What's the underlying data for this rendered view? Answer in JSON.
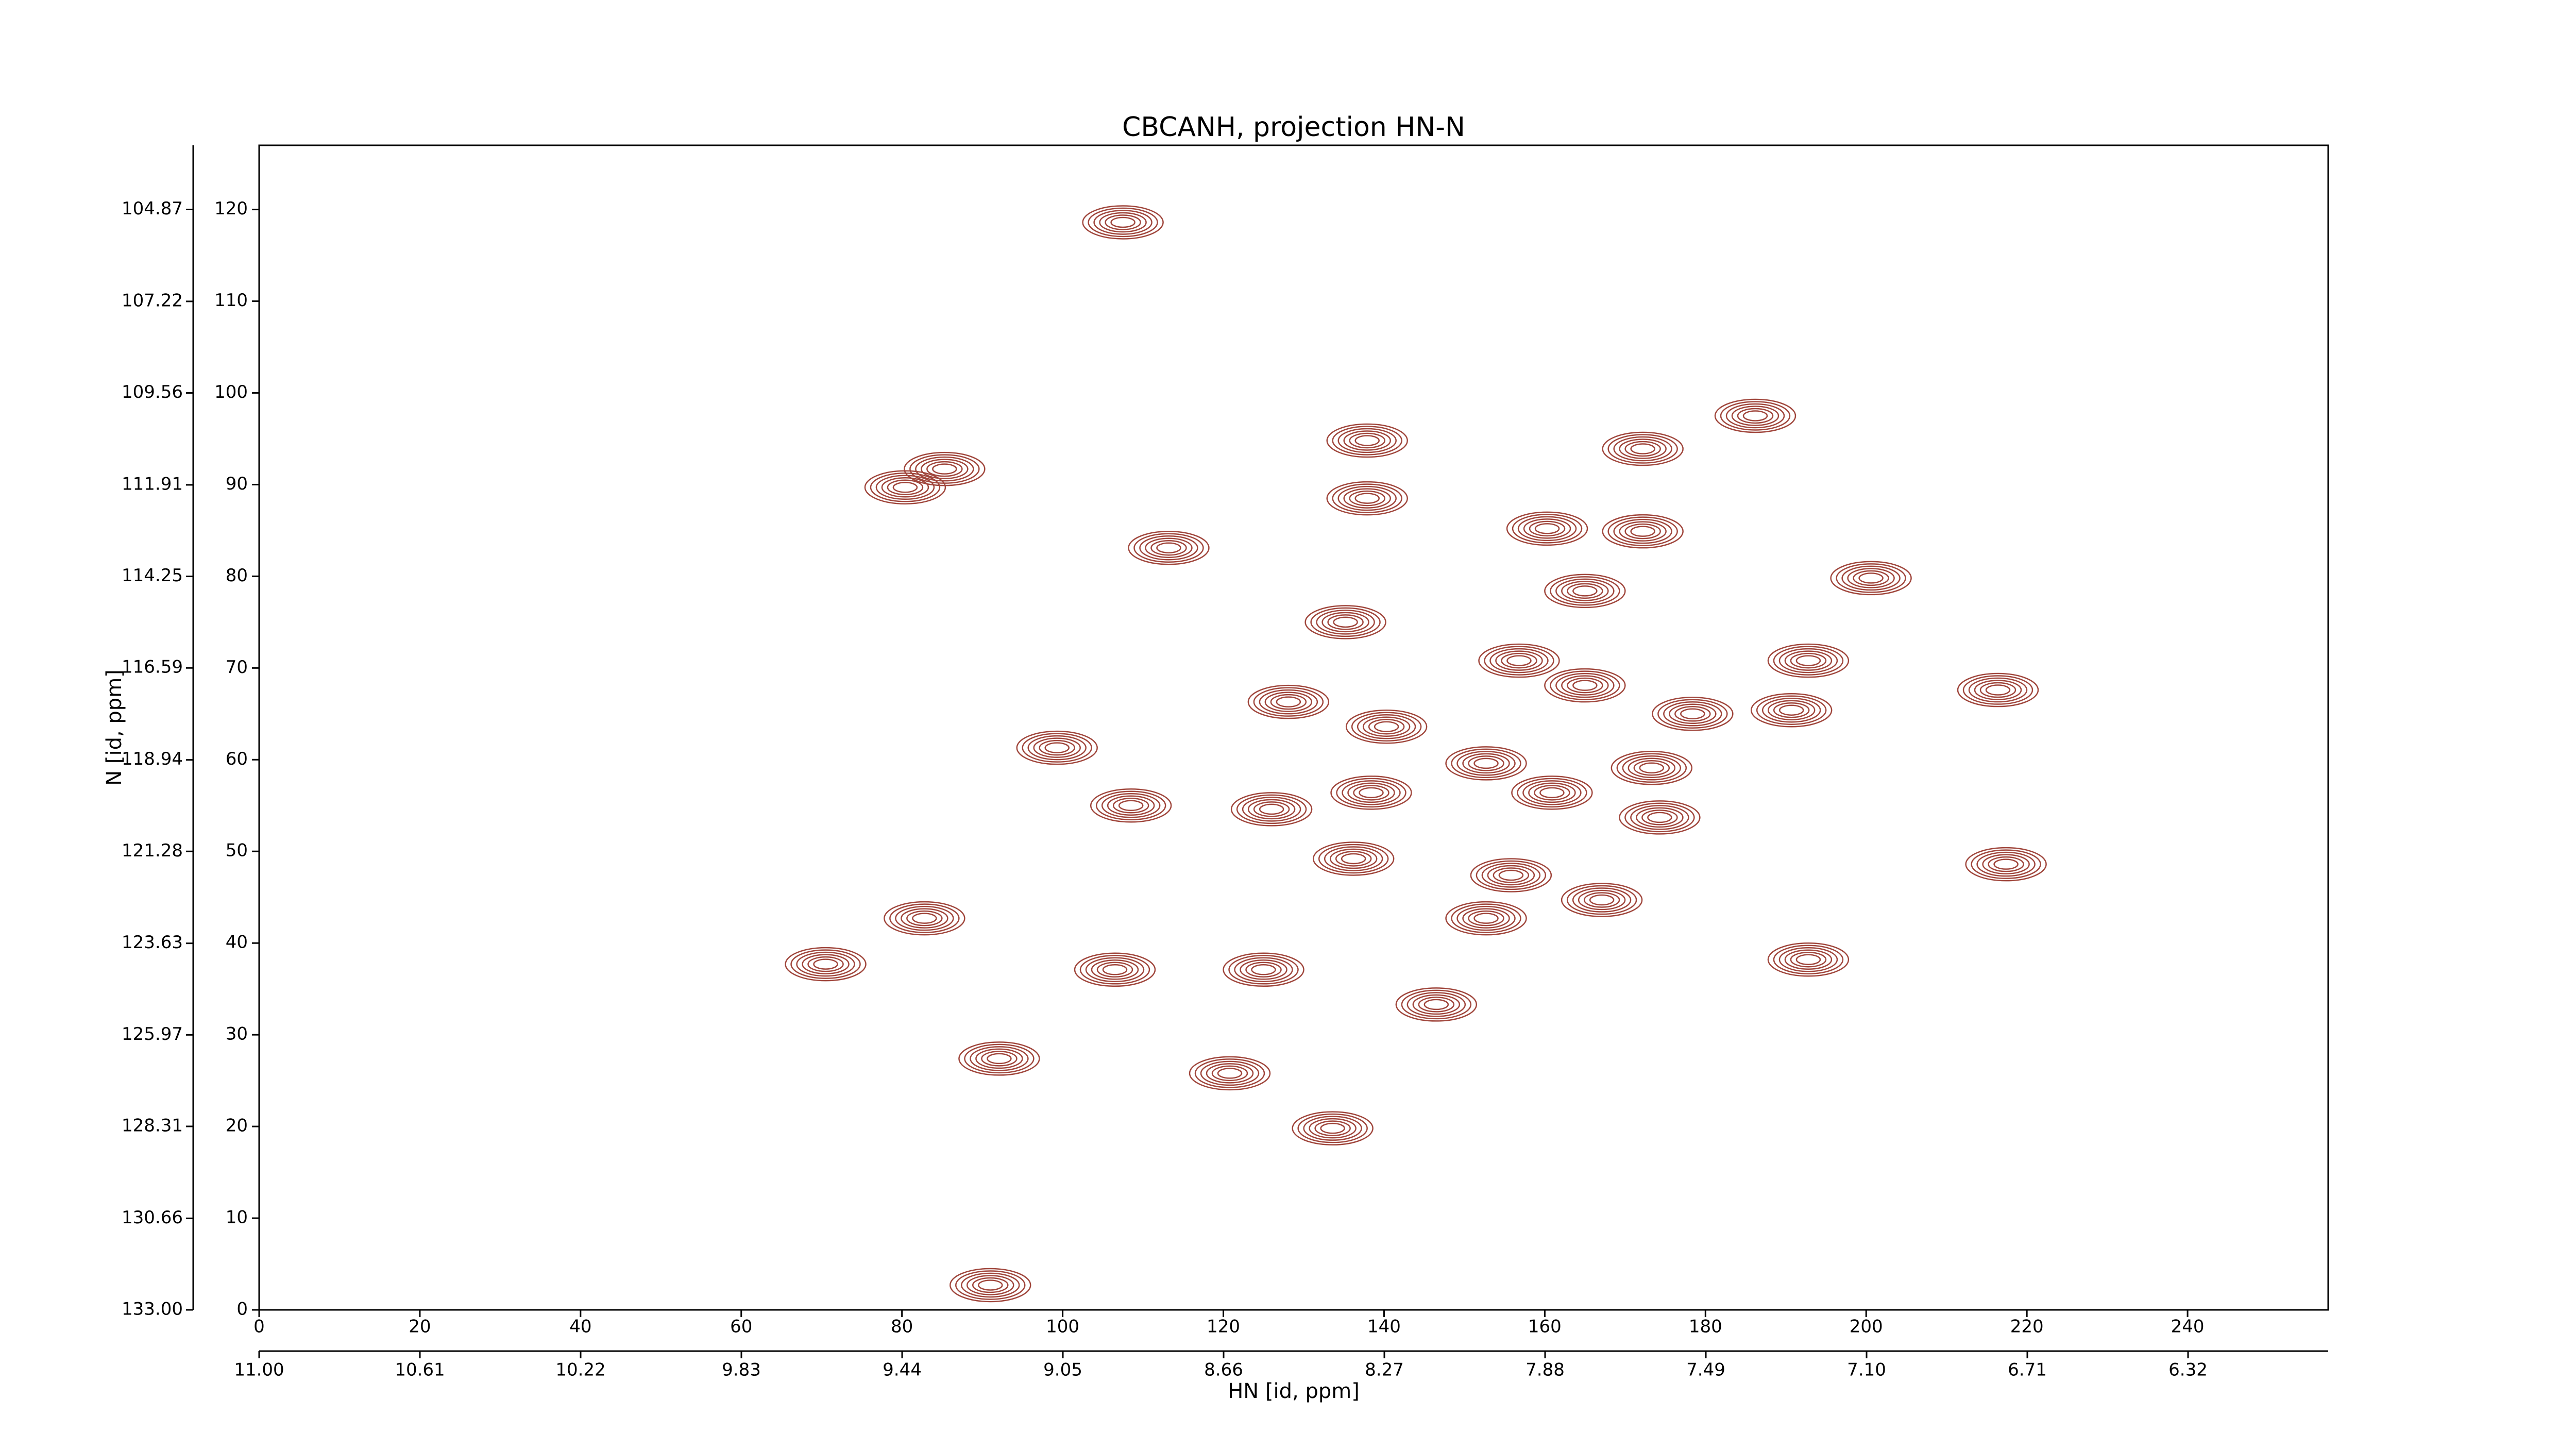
{
  "chart_data": {
    "type": "contour",
    "title": "CBCANH, projection HN-N",
    "xlabel": "HN [id, ppm]",
    "ylabel": "N [id, ppm]",
    "x": [
      107.5,
      85.3,
      80.4,
      113.2,
      137.9,
      137.9,
      172.2,
      186.2,
      160.3,
      172.2,
      165.0,
      200.6,
      135.2,
      192.8,
      216.4,
      99.3,
      108.5,
      82.8,
      70.5,
      106.5,
      125.0,
      92.1,
      146.5,
      133.6,
      217.4,
      192.8,
      120.8,
      91.0,
      128.1,
      140.3,
      152.7,
      126.0,
      138.4,
      160.9,
      173.3,
      174.3,
      178.4,
      190.7,
      156.8,
      165.0,
      155.8,
      167.1,
      152.7,
      136.2
    ],
    "values": [
      118.6,
      91.7,
      89.7,
      83.1,
      94.8,
      88.5,
      93.9,
      97.5,
      85.2,
      84.9,
      78.4,
      79.8,
      75.0,
      70.8,
      67.6,
      61.3,
      55.0,
      42.7,
      37.7,
      37.1,
      37.1,
      27.4,
      33.3,
      19.8,
      48.6,
      38.2,
      25.8,
      2.7,
      66.3,
      63.6,
      59.6,
      54.6,
      56.4,
      56.4,
      59.1,
      53.7,
      65.0,
      65.4,
      70.8,
      68.1,
      47.4,
      44.7,
      42.7,
      49.2
    ],
    "color": "#a0463c",
    "xlim": [
      0,
      257.5
    ],
    "xticks": [
      0,
      20,
      40,
      60,
      80,
      100,
      120,
      140,
      160,
      180,
      200,
      220,
      240
    ],
    "x2lim": [
      11.0,
      5.98
    ],
    "x2ticks": [
      {
        "value": 11.0,
        "label": "11.00"
      },
      10.61,
      10.22,
      9.83,
      9.44,
      9.05,
      8.66,
      8.27,
      7.88,
      7.49,
      {
        "value": 7.1,
        "label": "7.10"
      },
      6.71,
      6.32
    ],
    "ylim": [
      0,
      127
    ],
    "yticks": [
      0,
      10,
      20,
      30,
      40,
      50,
      60,
      70,
      80,
      90,
      100,
      110,
      120
    ],
    "y2lim": [
      133.0,
      103.23
    ],
    "y2ticks": [
      {
        "value": 133.0,
        "label": "133.00"
      },
      130.66,
      128.31,
      125.97,
      123.63,
      121.28,
      118.94,
      116.59,
      114.25,
      111.91,
      109.56,
      107.22,
      104.87
    ]
  }
}
